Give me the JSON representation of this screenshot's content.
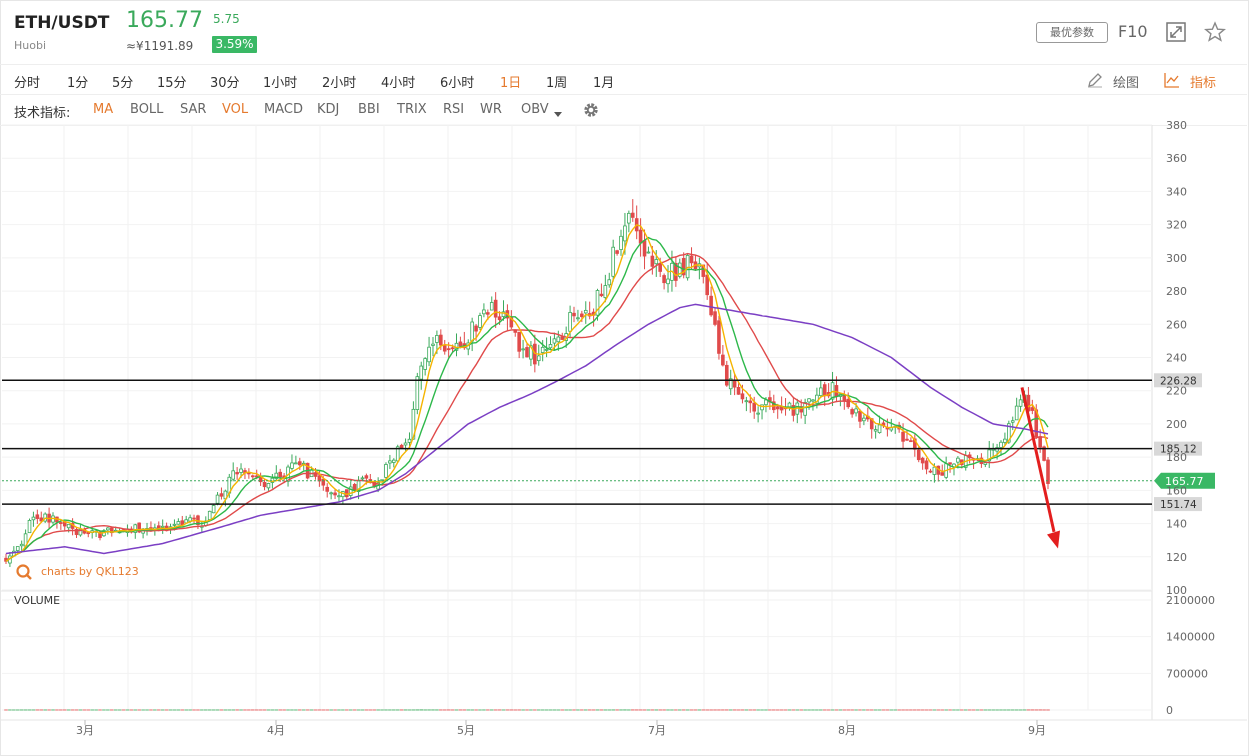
{
  "header": {
    "symbol": "ETH/USDT",
    "exchange": "Huobi",
    "price": "165.77",
    "change": "5.75",
    "cny": "≈¥1191.89",
    "pct": "3.59%",
    "best_params": "最优参数",
    "f10": "F10"
  },
  "timeframes": [
    "分时",
    "1分",
    "5分",
    "15分",
    "30分",
    "1小时",
    "2小时",
    "4小时",
    "6小时",
    "1日",
    "1周",
    "1月"
  ],
  "active_timeframe": "1日",
  "tools": {
    "draw": "绘图",
    "indicator": "指标"
  },
  "indicators_label": "技术指标:",
  "indicators": [
    "MA",
    "BOLL",
    "SAR",
    "VOL",
    "MACD",
    "KDJ",
    "BBI",
    "TRIX",
    "RSI",
    "WR",
    "OBV"
  ],
  "active_indicators": [
    "MA",
    "VOL"
  ],
  "watermark": "charts by QKL123",
  "volume_label": "VOLUME",
  "colors": {
    "up": "#3aa95b",
    "down": "#e04a4a",
    "accent": "#e57a2e",
    "ma5": "#f5b400",
    "ma10": "#2db84a",
    "ma20": "#e04a4a",
    "ma60": "#7b3fc4"
  },
  "chart_data": {
    "type": "candlestick",
    "price_axis": {
      "ticks": [
        100,
        120,
        140,
        160,
        180,
        200,
        220,
        240,
        260,
        280,
        300,
        320,
        340,
        360,
        380
      ],
      "range": [
        100,
        380
      ]
    },
    "volume_axis": {
      "ticks": [
        "0",
        "700000",
        "1400000",
        "2100000"
      ],
      "range": [
        0,
        2100000
      ]
    },
    "x_labels": [
      "3月",
      "4月",
      "5月",
      "7月",
      "8月",
      "9月"
    ],
    "horizontal_levels": [
      {
        "value": 226.28,
        "label": "226.28"
      },
      {
        "value": 185.12,
        "label": "185.12"
      },
      {
        "value": 151.74,
        "label": "151.74"
      }
    ],
    "last_price": {
      "value": 165.77,
      "label": "165.77"
    },
    "close_anchors": [
      [
        0,
        120
      ],
      [
        4,
        128
      ],
      [
        7,
        145
      ],
      [
        10,
        144
      ],
      [
        14,
        140
      ],
      [
        18,
        135
      ],
      [
        22,
        133
      ],
      [
        26,
        135
      ],
      [
        31,
        136
      ],
      [
        36,
        138
      ],
      [
        41,
        137
      ],
      [
        46,
        140
      ],
      [
        51,
        142
      ],
      [
        55,
        158
      ],
      [
        59,
        173
      ],
      [
        62,
        168
      ],
      [
        66,
        164
      ],
      [
        70,
        168
      ],
      [
        74,
        175
      ],
      [
        78,
        170
      ],
      [
        82,
        163
      ],
      [
        86,
        158
      ],
      [
        90,
        165
      ],
      [
        95,
        165
      ],
      [
        99,
        182
      ],
      [
        103,
        195
      ],
      [
        106,
        238
      ],
      [
        109,
        250
      ],
      [
        113,
        248
      ],
      [
        117,
        250
      ],
      [
        121,
        265
      ],
      [
        125,
        270
      ],
      [
        128,
        258
      ],
      [
        132,
        245
      ],
      [
        136,
        240
      ],
      [
        140,
        250
      ],
      [
        144,
        262
      ],
      [
        148,
        265
      ],
      [
        152,
        278
      ],
      [
        155,
        300
      ],
      [
        158,
        322
      ],
      [
        160,
        320
      ],
      [
        162,
        310
      ],
      [
        165,
        296
      ],
      [
        168,
        290
      ],
      [
        171,
        292
      ],
      [
        174,
        297
      ],
      [
        176,
        295
      ],
      [
        178,
        285
      ],
      [
        181,
        258
      ],
      [
        184,
        228
      ],
      [
        188,
        218
      ],
      [
        192,
        210
      ],
      [
        196,
        210
      ],
      [
        201,
        208
      ],
      [
        206,
        215
      ],
      [
        211,
        222
      ],
      [
        215,
        214
      ],
      [
        219,
        200
      ],
      [
        223,
        200
      ],
      [
        227,
        196
      ],
      [
        231,
        186
      ],
      [
        235,
        172
      ],
      [
        239,
        172
      ],
      [
        243,
        178
      ],
      [
        247,
        177
      ],
      [
        252,
        182
      ],
      [
        256,
        198
      ],
      [
        259,
        216
      ],
      [
        261,
        212
      ],
      [
        263,
        195
      ],
      [
        266,
        166
      ]
    ],
    "ma60_anchors": [
      [
        0,
        122
      ],
      [
        15,
        126
      ],
      [
        25,
        122
      ],
      [
        40,
        128
      ],
      [
        55,
        138
      ],
      [
        65,
        145
      ],
      [
        75,
        149
      ],
      [
        85,
        153
      ],
      [
        95,
        160
      ],
      [
        102,
        170
      ],
      [
        110,
        185
      ],
      [
        118,
        200
      ],
      [
        126,
        210
      ],
      [
        134,
        218
      ],
      [
        140,
        225
      ],
      [
        148,
        235
      ],
      [
        156,
        248
      ],
      [
        164,
        260
      ],
      [
        172,
        270
      ],
      [
        176,
        272
      ],
      [
        186,
        268
      ],
      [
        196,
        264
      ],
      [
        206,
        260
      ],
      [
        216,
        252
      ],
      [
        226,
        240
      ],
      [
        236,
        222
      ],
      [
        244,
        210
      ],
      [
        252,
        200
      ],
      [
        260,
        197
      ],
      [
        266,
        194
      ]
    ],
    "volume_anchors": [
      [
        0,
        300
      ],
      [
        6,
        650
      ],
      [
        10,
        900
      ],
      [
        14,
        450
      ],
      [
        20,
        350
      ],
      [
        26,
        300
      ],
      [
        36,
        300
      ],
      [
        46,
        350
      ],
      [
        54,
        600
      ],
      [
        58,
        900
      ],
      [
        62,
        650
      ],
      [
        66,
        500
      ],
      [
        74,
        450
      ],
      [
        82,
        350
      ],
      [
        92,
        350
      ],
      [
        98,
        700
      ],
      [
        104,
        1100
      ],
      [
        106,
        1900
      ],
      [
        109,
        1300
      ],
      [
        113,
        900
      ],
      [
        120,
        600
      ],
      [
        125,
        900
      ],
      [
        130,
        700
      ],
      [
        136,
        500
      ],
      [
        142,
        450
      ],
      [
        148,
        700
      ],
      [
        154,
        1100
      ],
      [
        157,
        1300
      ],
      [
        159,
        1600
      ],
      [
        161,
        1050
      ],
      [
        164,
        900
      ],
      [
        168,
        700
      ],
      [
        174,
        500
      ],
      [
        178,
        700
      ],
      [
        182,
        1000
      ],
      [
        186,
        900
      ],
      [
        190,
        550
      ],
      [
        196,
        450
      ],
      [
        204,
        400
      ],
      [
        212,
        500
      ],
      [
        216,
        600
      ],
      [
        220,
        500
      ],
      [
        226,
        450
      ],
      [
        232,
        600
      ],
      [
        238,
        350
      ],
      [
        244,
        350
      ],
      [
        250,
        400
      ],
      [
        256,
        450
      ],
      [
        260,
        700
      ],
      [
        263,
        1500
      ],
      [
        265,
        700
      ]
    ],
    "bars": 267,
    "start": 1
  }
}
